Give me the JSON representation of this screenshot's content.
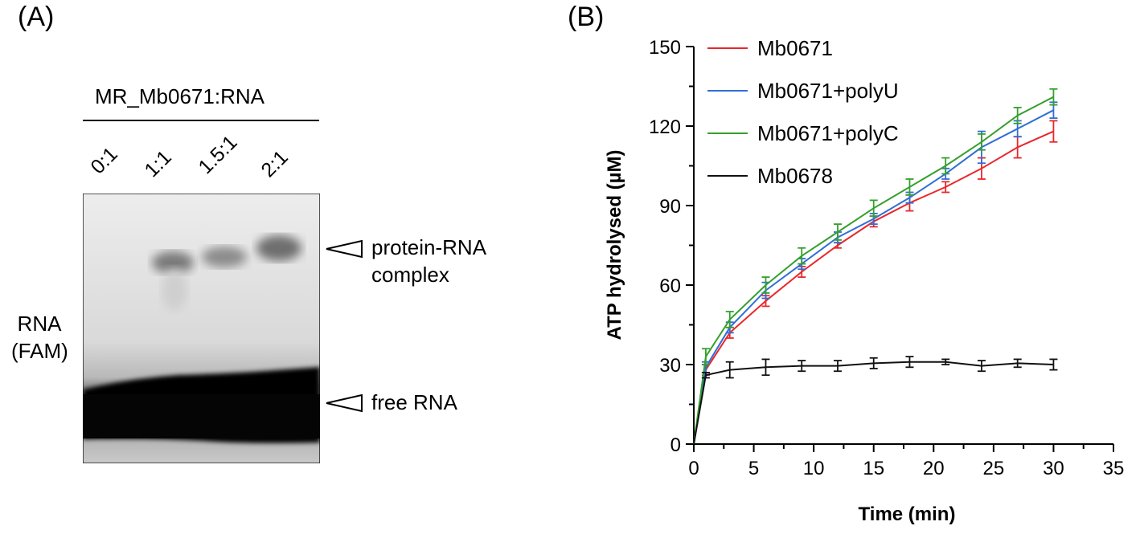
{
  "panel_a": {
    "label": "(A)",
    "header": "MR_Mb0671:RNA",
    "lanes": [
      "0:1",
      "1:1",
      "1.5:1",
      "2:1"
    ],
    "side_label_line1": "RNA",
    "side_label_line2": "(FAM)",
    "complex_label_line1": "protein-RNA",
    "complex_label_line2": "complex",
    "free_label": "free RNA"
  },
  "panel_b": {
    "label": "(B)"
  },
  "chart_data": {
    "type": "line",
    "xlabel": "Time (min)",
    "ylabel": "ATP hydrolysed (µM)",
    "xlim": [
      0,
      35
    ],
    "ylim": [
      0,
      150
    ],
    "xticks": [
      0,
      5,
      10,
      15,
      20,
      25,
      30,
      35
    ],
    "yticks": [
      0,
      30,
      60,
      90,
      120,
      150
    ],
    "grid": false,
    "legend": "top-left",
    "x": [
      0,
      1,
      3,
      6,
      9,
      12,
      15,
      18,
      21,
      24,
      27,
      30
    ],
    "series": [
      {
        "name": "Mb0671",
        "color": "#e8282b",
        "values": [
          0,
          28,
          42,
          54,
          65,
          75,
          84,
          91,
          97,
          104,
          112,
          118
        ],
        "errors": [
          0,
          2,
          2,
          2,
          2,
          1,
          2,
          3,
          2,
          4,
          4,
          4
        ]
      },
      {
        "name": "Mb0671+polyU",
        "color": "#2f6fd6",
        "values": [
          0,
          29,
          44,
          58,
          68,
          78,
          85,
          93,
          102,
          112,
          119,
          126
        ],
        "errors": [
          0,
          2,
          2,
          3,
          2,
          2,
          2,
          2,
          2,
          6,
          3,
          3
        ]
      },
      {
        "name": "Mb0671+polyC",
        "color": "#35a02c",
        "values": [
          0,
          33,
          47,
          60,
          71,
          80,
          89,
          97,
          105,
          114,
          124,
          131
        ],
        "errors": [
          0,
          3,
          3,
          3,
          3,
          3,
          3,
          3,
          3,
          3,
          3,
          3
        ]
      },
      {
        "name": "Mb0678",
        "color": "#111111",
        "values": [
          0,
          26,
          28,
          29,
          29.5,
          29.5,
          30.5,
          31,
          31,
          29.5,
          30.5,
          30
        ],
        "errors": [
          0,
          1,
          3,
          3,
          2,
          2,
          2,
          2,
          1,
          2,
          1.5,
          2
        ]
      }
    ]
  }
}
